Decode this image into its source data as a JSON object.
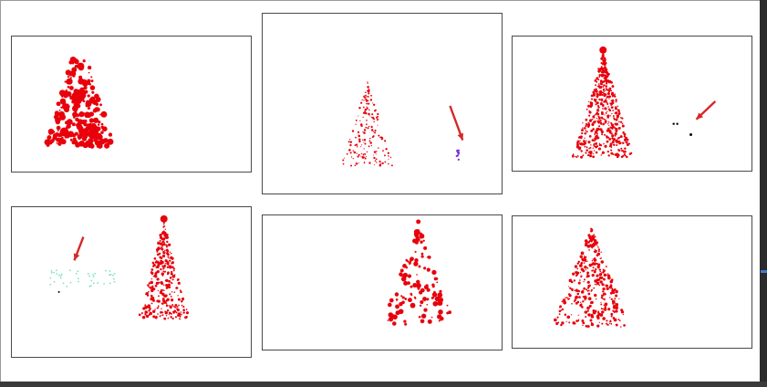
{
  "colors": {
    "tree": "#e8000b",
    "arrow": "#d62728",
    "purple_object": "#7b2fd6",
    "mint_object": "#7de3b8",
    "black_dots": "#000000"
  },
  "panels": [
    {
      "id": "p1",
      "style": "dense-blob",
      "arrow": false,
      "extra": "none"
    },
    {
      "id": "p2",
      "style": "sparse-dots",
      "arrow": true,
      "extra": "purple"
    },
    {
      "id": "p3",
      "style": "dense-tree",
      "arrow": true,
      "extra": "black-dots"
    },
    {
      "id": "p4",
      "style": "medium-tree",
      "arrow": true,
      "extra": "mint-cloud"
    },
    {
      "id": "p5",
      "style": "sparse-blobs",
      "arrow": false,
      "extra": "none"
    },
    {
      "id": "p6",
      "style": "medium-tree",
      "arrow": false,
      "extra": "none"
    }
  ]
}
